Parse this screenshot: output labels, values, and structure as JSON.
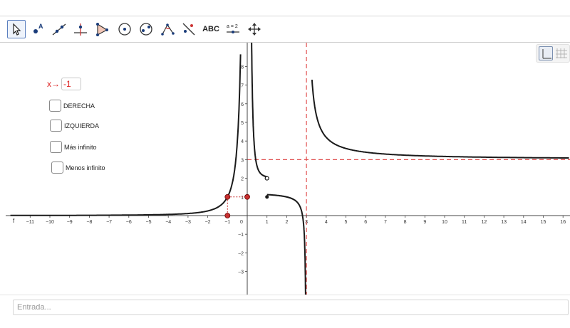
{
  "toolbar": {
    "tools": [
      {
        "name": "move-tool-icon",
        "active": true
      },
      {
        "name": "point-tool-icon"
      },
      {
        "name": "line-tool-icon"
      },
      {
        "name": "perpendicular-line-tool-icon"
      },
      {
        "name": "polygon-tool-icon"
      },
      {
        "name": "circle-center-point-tool-icon"
      },
      {
        "name": "circle-three-points-tool-icon"
      },
      {
        "name": "angle-tool-icon"
      },
      {
        "name": "reflect-tool-icon"
      },
      {
        "name": "text-tool-icon",
        "label": "ABC"
      },
      {
        "name": "slider-tool-icon",
        "label": "a = 2"
      },
      {
        "name": "move-graphics-view-tool-icon"
      }
    ]
  },
  "slider": {
    "label": "x→",
    "value": "-1"
  },
  "checkboxes": {
    "derecha": "DERECHA",
    "izquierda": "IZQUIERDA",
    "mas_infinito": "Más infinito",
    "menos_infinito": "Menos infinito"
  },
  "graph": {
    "x_axis_label": "f",
    "x_ticks": [
      -11,
      -10,
      -9,
      -8,
      -7,
      -6,
      -5,
      -4,
      -3,
      -2,
      -1,
      0,
      1,
      2,
      3,
      4,
      5,
      6,
      7,
      8,
      9,
      10,
      11,
      12,
      13,
      14,
      15,
      16
    ],
    "y_ticks": [
      -3,
      -2,
      -1,
      1,
      2,
      3,
      4,
      5,
      6,
      7,
      8
    ],
    "vertical_asymptote_x": 3,
    "horizontal_asymptote_y": 3,
    "colors": {
      "curve": "#1a1a1a",
      "asymptote": "#e05050",
      "point": "#c83030",
      "axis": "#444444"
    },
    "open_point": [
      1,
      2
    ],
    "closed_point": [
      1,
      1
    ]
  },
  "input_bar": {
    "placeholder": "Entrada..."
  }
}
